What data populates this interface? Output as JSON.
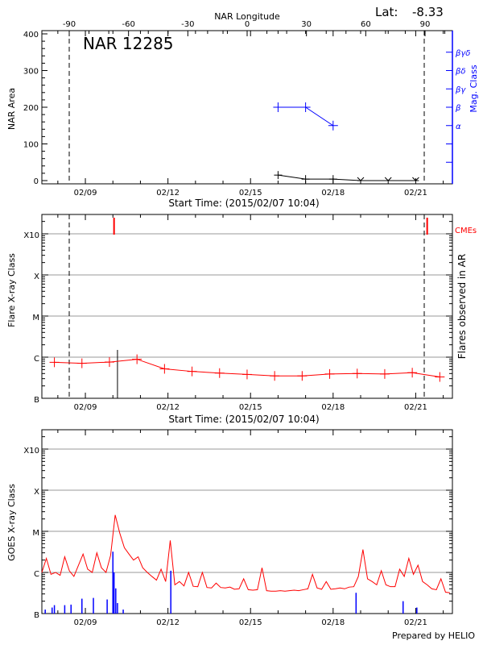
{
  "header": {
    "lat_label": "Lat:",
    "lat_value": "-8.33",
    "longitude_title": "NAR Longitude",
    "region_title": "NAR 12285",
    "footer": "Prepared by HELIO"
  },
  "colors": {
    "axis": "#000000",
    "grid": "#999999",
    "flare": "#ff0000",
    "mag_class": "#0000ff",
    "goes": "#ff0000",
    "goes_events": "#0000ff",
    "cme": "#ff0000"
  },
  "chart_data": [
    {
      "type": "line",
      "panel": "nar",
      "title": "NAR 12285",
      "xlabel": "Start Time: (2015/02/07 10:04)",
      "ylabel": "NAR Area",
      "y2label": "Mag. Class",
      "top_axis_label": "NAR Longitude",
      "xlim": [
        "2015-02-07T10:04",
        "2015-02-22T08:00"
      ],
      "x_ticks": [
        {
          "date": "2015-02-09",
          "label": "02/09"
        },
        {
          "date": "2015-02-12",
          "label": "02/12"
        },
        {
          "date": "2015-02-15",
          "label": "02/15"
        },
        {
          "date": "2015-02-18",
          "label": "02/18"
        },
        {
          "date": "2015-02-21",
          "label": "02/21"
        }
      ],
      "ylim": [
        0,
        400
      ],
      "y_ticks": [
        "0",
        "100",
        "200",
        "300",
        "400"
      ],
      "longitude_ticks": [
        "-90",
        "-60",
        "-30",
        "0",
        "30",
        "60",
        "90"
      ],
      "longitude_limb_dates": [
        "2015-02-08T05:00",
        "2015-02-21T10:00"
      ],
      "mag_class_ticks": [
        "",
        "",
        "α",
        "β",
        "βγ",
        "βδ",
        "βγδ"
      ],
      "series": [
        {
          "name": "NAR Area",
          "color": "#000000",
          "x": [
            "2015-02-16T00:00",
            "2015-02-17T00:00",
            "2015-02-18T00:00",
            "2015-02-19T00:00",
            "2015-02-20T00:00",
            "2015-02-21T00:00"
          ],
          "y": [
            15,
            4,
            4,
            0,
            0,
            0
          ]
        },
        {
          "name": "Mag. Class",
          "color": "#0000ff",
          "x": [
            "2015-02-16T00:00",
            "2015-02-17T00:00",
            "2015-02-18T00:00"
          ],
          "y": [
            "β",
            "β",
            "α"
          ]
        }
      ]
    },
    {
      "type": "line",
      "panel": "flares",
      "xlabel": "Start Time: (2015/02/07 10:04)",
      "ylabel": "Flare X-ray Class",
      "y2label": "Flares observed in AR",
      "cme_label": "CMEs",
      "yscale": "log",
      "class_ticks": [
        {
          "label": "B",
          "value": 1e-07
        },
        {
          "label": "C",
          "value": 1e-06
        },
        {
          "label": "M",
          "value": 1e-05
        },
        {
          "label": "X",
          "value": 0.0001
        },
        {
          "label": "X10",
          "value": 0.001
        }
      ],
      "grid": true,
      "series": [
        {
          "name": "background",
          "color": "#ff0000",
          "x": [
            "2015-02-07T21:00",
            "2015-02-08T21:00",
            "2015-02-09T21:00",
            "2015-02-10T21:00",
            "2015-02-11T21:00",
            "2015-02-12T21:00",
            "2015-02-13T21:00",
            "2015-02-14T21:00",
            "2015-02-15T21:00",
            "2015-02-16T21:00",
            "2015-02-17T21:00",
            "2015-02-18T21:00",
            "2015-02-19T21:00",
            "2015-02-20T21:00",
            "2015-02-21T21:00"
          ],
          "y": [
            7.5e-07,
            7.1e-07,
            7.6e-07,
            8.9e-07,
            5.2e-07,
            4.5e-07,
            4.1e-07,
            3.8e-07,
            3.5e-07,
            3.5e-07,
            3.9e-07,
            4e-07,
            3.9e-07,
            4.2e-07,
            3.3e-07
          ]
        }
      ],
      "flares_in_ar": [
        {
          "date": "2015-02-10T04:00",
          "value": 1.5e-06
        }
      ],
      "cmes": [
        "2015-02-10T01:00",
        "2015-02-21T10:00"
      ]
    },
    {
      "type": "line",
      "panel": "goes",
      "ylabel": "GOES X-ray Class",
      "yscale": "log",
      "grid": true,
      "goes_flux": {
        "start": "2015-02-07T10:00",
        "step_hours": 4,
        "color": "#ff0000",
        "values": [
          1e-06,
          2.2e-06,
          9e-07,
          1e-06,
          8.5e-07,
          2.4e-06,
          1.1e-06,
          8e-07,
          1.5e-06,
          2.8e-06,
          1.2e-06,
          1e-06,
          3e-06,
          1.3e-06,
          1e-06,
          2.6e-06,
          2.5e-05,
          9e-06,
          4e-06,
          2.8e-06,
          2e-06,
          2.4e-06,
          1.3e-06,
          1e-06,
          8e-07,
          6.5e-07,
          1.2e-06,
          6e-07,
          6e-06,
          5e-07,
          6e-07,
          4.7e-07,
          1e-06,
          4.6e-07,
          4.5e-07,
          1e-06,
          4.3e-07,
          4.2e-07,
          5.5e-07,
          4.3e-07,
          4.2e-07,
          4.4e-07,
          3.9e-07,
          4e-07,
          7e-07,
          3.8e-07,
          3.7e-07,
          3.8e-07,
          1.3e-06,
          3.6e-07,
          3.5e-07,
          3.5e-07,
          3.6e-07,
          3.5e-07,
          3.6e-07,
          3.7e-07,
          3.6e-07,
          3.8e-07,
          4e-07,
          9e-07,
          4.2e-07,
          3.9e-07,
          6e-07,
          3.9e-07,
          4e-07,
          4.2e-07,
          4e-07,
          4.4e-07,
          4.5e-07,
          8e-07,
          3.6e-06,
          7e-07,
          6e-07,
          5e-07,
          1.1e-06,
          5e-07,
          4.5e-07,
          4.5e-07,
          1.2e-06,
          8e-07,
          2.2e-06,
          9e-07,
          1.5e-06,
          6e-07,
          5e-07,
          4e-07,
          3.8e-07,
          7e-07,
          3.3e-07,
          3.2e-07
        ]
      },
      "flare_events": {
        "color": "#0000ff",
        "x": [
          "2015-02-07T13:00",
          "2015-02-07T19:00",
          "2015-02-07T21:00",
          "2015-02-08T06:00",
          "2015-02-08T11:30",
          "2015-02-08T21:00",
          "2015-02-09T07:00",
          "2015-02-09T19:00",
          "2015-02-10T00:00",
          "2015-02-10T01:00",
          "2015-02-10T02:30",
          "2015-02-10T04:00",
          "2015-02-10T09:00",
          "2015-02-12T02:30",
          "2015-02-18T20:00",
          "2015-02-20T13:00",
          "2015-02-21T01:00"
        ],
        "y": [
          1.25e-07,
          1.4e-07,
          1.6e-07,
          1.6e-07,
          1.65e-07,
          2.3e-07,
          2.4e-07,
          2.2e-07,
          3.2e-06,
          1e-06,
          4.1e-07,
          1.8e-07,
          1.25e-07,
          1.1e-06,
          3.2e-07,
          2e-07,
          1.4e-07
        ]
      }
    }
  ]
}
